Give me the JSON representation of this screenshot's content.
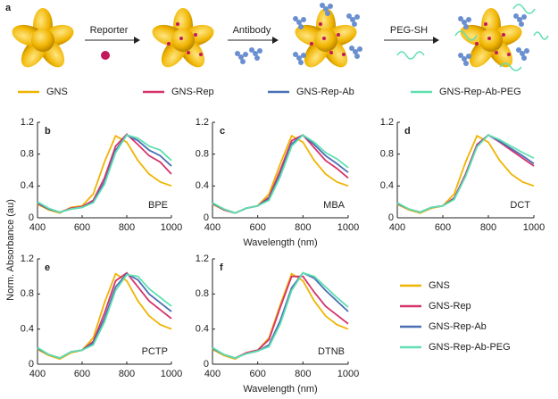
{
  "schematic": {
    "label": "a",
    "steps": [
      "Reporter",
      "Antibody",
      "PEG-SH"
    ]
  },
  "ylabel": "Norm. Absorbance (au)",
  "chart_data": [
    {
      "type": "line",
      "panel": "b",
      "label": "BPE",
      "x": [
        400,
        450,
        500,
        550,
        600,
        650,
        700,
        750,
        800,
        850,
        900,
        950,
        1000
      ],
      "xlim": [
        400,
        1000
      ],
      "xticks": [
        400,
        600,
        800,
        1000
      ],
      "ylim": [
        0,
        1.2
      ],
      "yticks": [
        0,
        0.4,
        0.8,
        1.2
      ],
      "series": [
        {
          "name": "GNS",
          "color": "#f0b400",
          "values": [
            0.17,
            0.1,
            0.06,
            0.13,
            0.15,
            0.3,
            0.7,
            1.03,
            0.95,
            0.72,
            0.55,
            0.45,
            0.4
          ]
        },
        {
          "name": "GNS-Rep",
          "color": "#d6336c",
          "values": [
            0.18,
            0.11,
            0.07,
            0.12,
            0.14,
            0.22,
            0.5,
            0.9,
            1.05,
            0.92,
            0.78,
            0.7,
            0.55
          ]
        },
        {
          "name": "GNS-Rep-Ab",
          "color": "#4a6fb5",
          "values": [
            0.19,
            0.11,
            0.07,
            0.11,
            0.13,
            0.2,
            0.45,
            0.85,
            1.04,
            0.97,
            0.85,
            0.78,
            0.65
          ]
        },
        {
          "name": "GNS-Rep-Ab-PEG",
          "color": "#5fe0b0",
          "values": [
            0.2,
            0.12,
            0.07,
            0.11,
            0.13,
            0.19,
            0.42,
            0.82,
            1.04,
            1.0,
            0.9,
            0.85,
            0.72
          ]
        }
      ]
    },
    {
      "type": "line",
      "panel": "c",
      "label": "MBA",
      "xlabel": "Wavelength (nm)",
      "x": [
        400,
        450,
        500,
        550,
        600,
        650,
        700,
        750,
        800,
        850,
        900,
        950,
        1000
      ],
      "xlim": [
        400,
        1000
      ],
      "xticks": [
        400,
        600,
        800,
        1000
      ],
      "ylim": [
        0,
        1.2
      ],
      "yticks": [
        0,
        0.4,
        0.8,
        1.2
      ],
      "series": [
        {
          "name": "GNS",
          "color": "#f0b400",
          "values": [
            0.17,
            0.1,
            0.06,
            0.12,
            0.15,
            0.3,
            0.68,
            1.03,
            0.95,
            0.72,
            0.55,
            0.45,
            0.4
          ]
        },
        {
          "name": "GNS-Rep",
          "color": "#d6336c",
          "values": [
            0.18,
            0.1,
            0.06,
            0.12,
            0.15,
            0.26,
            0.6,
            0.97,
            1.04,
            0.88,
            0.72,
            0.62,
            0.5
          ]
        },
        {
          "name": "GNS-Rep-Ab",
          "color": "#4a6fb5",
          "values": [
            0.18,
            0.11,
            0.06,
            0.12,
            0.15,
            0.24,
            0.55,
            0.93,
            1.04,
            0.92,
            0.78,
            0.68,
            0.57
          ]
        },
        {
          "name": "GNS-Rep-Ab-PEG",
          "color": "#5fe0b0",
          "values": [
            0.19,
            0.11,
            0.06,
            0.12,
            0.15,
            0.22,
            0.52,
            0.9,
            1.04,
            0.95,
            0.82,
            0.74,
            0.63
          ]
        }
      ]
    },
    {
      "type": "line",
      "panel": "d",
      "label": "DCT",
      "x": [
        400,
        450,
        500,
        550,
        600,
        650,
        700,
        750,
        800,
        850,
        900,
        950,
        1000
      ],
      "xlim": [
        400,
        1000
      ],
      "xticks": [
        400,
        600,
        800,
        1000
      ],
      "ylim": [
        0,
        1.2
      ],
      "yticks": [
        0,
        0.4,
        0.8,
        1.2
      ],
      "series": [
        {
          "name": "GNS",
          "color": "#f0b400",
          "values": [
            0.17,
            0.1,
            0.06,
            0.12,
            0.15,
            0.3,
            0.7,
            1.03,
            0.95,
            0.72,
            0.55,
            0.45,
            0.4
          ]
        },
        {
          "name": "GNS-Rep",
          "color": "#d6336c",
          "values": [
            0.18,
            0.11,
            0.07,
            0.13,
            0.15,
            0.25,
            0.55,
            0.92,
            1.04,
            0.95,
            0.85,
            0.75,
            0.65
          ]
        },
        {
          "name": "GNS-Rep-Ab",
          "color": "#4a6fb5",
          "values": [
            0.18,
            0.11,
            0.07,
            0.13,
            0.15,
            0.24,
            0.53,
            0.9,
            1.04,
            0.96,
            0.87,
            0.78,
            0.68
          ]
        },
        {
          "name": "GNS-Rep-Ab-PEG",
          "color": "#5fe0b0",
          "values": [
            0.19,
            0.11,
            0.07,
            0.13,
            0.15,
            0.23,
            0.52,
            0.89,
            1.04,
            0.98,
            0.9,
            0.82,
            0.75
          ]
        }
      ]
    },
    {
      "type": "line",
      "panel": "e",
      "label": "PCTP",
      "x": [
        400,
        450,
        500,
        550,
        600,
        650,
        700,
        750,
        800,
        850,
        900,
        950,
        1000
      ],
      "xlim": [
        400,
        1000
      ],
      "xticks": [
        400,
        600,
        800,
        1000
      ],
      "ylim": [
        0,
        1.2
      ],
      "yticks": [
        0,
        0.4,
        0.8,
        1.2
      ],
      "series": [
        {
          "name": "GNS",
          "color": "#f0b400",
          "values": [
            0.17,
            0.1,
            0.06,
            0.13,
            0.16,
            0.3,
            0.7,
            1.03,
            0.95,
            0.72,
            0.55,
            0.45,
            0.4
          ]
        },
        {
          "name": "GNS-Rep",
          "color": "#d6336c",
          "values": [
            0.18,
            0.11,
            0.07,
            0.14,
            0.16,
            0.26,
            0.58,
            0.95,
            1.04,
            0.88,
            0.72,
            0.62,
            0.52
          ]
        },
        {
          "name": "GNS-Rep-Ab",
          "color": "#4a6fb5",
          "values": [
            0.18,
            0.11,
            0.07,
            0.14,
            0.16,
            0.24,
            0.52,
            0.88,
            1.03,
            0.96,
            0.8,
            0.7,
            0.6
          ]
        },
        {
          "name": "GNS-Rep-Ab-PEG",
          "color": "#5fe0b0",
          "values": [
            0.19,
            0.11,
            0.07,
            0.14,
            0.16,
            0.22,
            0.48,
            0.84,
            1.02,
            1.0,
            0.86,
            0.76,
            0.66
          ]
        }
      ]
    },
    {
      "type": "line",
      "panel": "f",
      "label": "DTNB",
      "xlabel": "Wavelength (nm)",
      "x": [
        400,
        450,
        500,
        550,
        600,
        650,
        700,
        750,
        800,
        850,
        900,
        950,
        1000
      ],
      "xlim": [
        400,
        1000
      ],
      "xticks": [
        400,
        600,
        800,
        1000
      ],
      "ylim": [
        0,
        1.2
      ],
      "yticks": [
        0,
        0.4,
        0.8,
        1.2
      ],
      "series": [
        {
          "name": "GNS",
          "color": "#f0b400",
          "values": [
            0.17,
            0.1,
            0.06,
            0.13,
            0.16,
            0.3,
            0.68,
            1.03,
            0.95,
            0.72,
            0.55,
            0.45,
            0.4
          ]
        },
        {
          "name": "GNS-Rep",
          "color": "#d6336c",
          "values": [
            0.18,
            0.11,
            0.07,
            0.13,
            0.16,
            0.28,
            0.65,
            1.0,
            1.0,
            0.82,
            0.66,
            0.56,
            0.46
          ]
        },
        {
          "name": "GNS-Rep-Ab",
          "color": "#4a6fb5",
          "values": [
            0.18,
            0.11,
            0.07,
            0.12,
            0.15,
            0.22,
            0.5,
            0.87,
            1.04,
            0.98,
            0.84,
            0.72,
            0.6
          ]
        },
        {
          "name": "GNS-Rep-Ab-PEG",
          "color": "#5fe0b0",
          "values": [
            0.19,
            0.11,
            0.07,
            0.12,
            0.15,
            0.2,
            0.46,
            0.84,
            1.04,
            1.0,
            0.88,
            0.76,
            0.65
          ]
        }
      ]
    }
  ]
}
